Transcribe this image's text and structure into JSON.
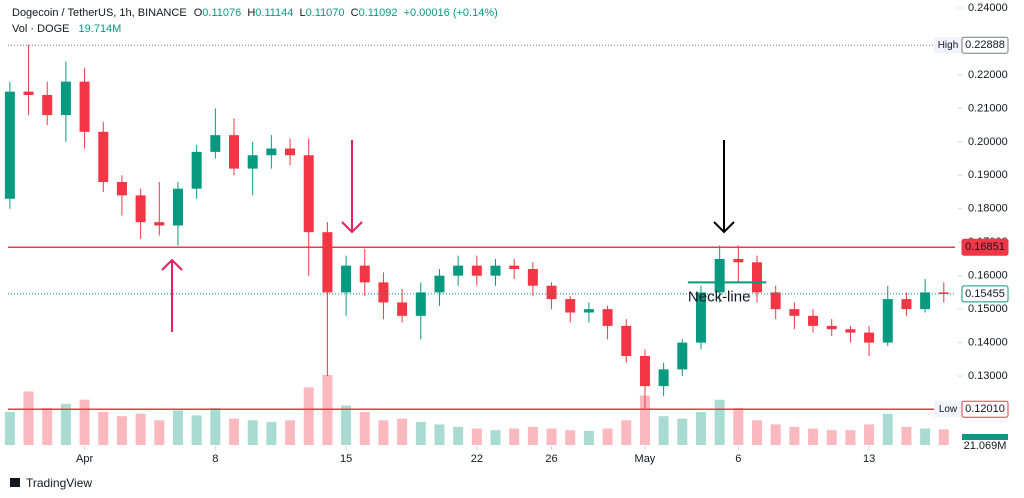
{
  "header": {
    "symbol": "Dogecoin / TetherUS, 1h, BINANCE",
    "ohlc": [
      {
        "key": "O",
        "value": "0.11076"
      },
      {
        "key": "H",
        "value": "0.11144"
      },
      {
        "key": "L",
        "value": "0.11070"
      },
      {
        "key": "C",
        "value": "0.11092"
      }
    ],
    "change": "+0.00016 (+0.14%)",
    "volume_label": "Vol · DOGE",
    "volume_value": "19.714M"
  },
  "chart_data": {
    "type": "candlestick",
    "x": [
      -4,
      -3,
      -2,
      -1,
      0,
      1,
      2,
      3,
      4,
      5,
      6,
      7,
      8,
      9,
      10,
      11,
      12,
      13,
      14,
      15,
      16,
      17,
      18,
      19,
      20,
      21,
      22,
      23,
      24,
      25,
      26,
      27,
      28,
      29,
      30,
      31,
      32,
      33,
      34,
      35,
      36,
      37,
      38,
      39,
      40,
      41,
      42,
      43,
      44,
      45,
      46
    ],
    "open": [
      0.183,
      0.215,
      0.214,
      0.208,
      0.218,
      0.203,
      0.188,
      0.184,
      0.176,
      0.175,
      0.186,
      0.197,
      0.202,
      0.192,
      0.196,
      0.198,
      0.196,
      0.173,
      0.155,
      0.163,
      0.158,
      0.152,
      0.148,
      0.155,
      0.16,
      0.163,
      0.16,
      0.163,
      0.162,
      0.157,
      0.153,
      0.149,
      0.15,
      0.145,
      0.136,
      0.127,
      0.132,
      0.14,
      0.155,
      0.165,
      0.164,
      0.155,
      0.15,
      0.148,
      0.145,
      0.144,
      0.143,
      0.14,
      0.153,
      0.15,
      0.155
    ],
    "high": [
      0.218,
      0.229,
      0.218,
      0.224,
      0.222,
      0.206,
      0.19,
      0.186,
      0.188,
      0.188,
      0.199,
      0.21,
      0.207,
      0.2,
      0.202,
      0.201,
      0.201,
      0.176,
      0.166,
      0.168,
      0.161,
      0.156,
      0.158,
      0.162,
      0.166,
      0.166,
      0.165,
      0.165,
      0.164,
      0.158,
      0.154,
      0.152,
      0.151,
      0.147,
      0.138,
      0.134,
      0.141,
      0.157,
      0.169,
      0.169,
      0.166,
      0.157,
      0.152,
      0.15,
      0.147,
      0.145,
      0.145,
      0.157,
      0.155,
      0.159,
      0.158
    ],
    "low": [
      0.18,
      0.208,
      0.205,
      0.2,
      0.198,
      0.185,
      0.178,
      0.171,
      0.172,
      0.169,
      0.183,
      0.195,
      0.19,
      0.184,
      0.192,
      0.193,
      0.16,
      0.13,
      0.148,
      0.154,
      0.147,
      0.146,
      0.141,
      0.151,
      0.157,
      0.157,
      0.157,
      0.159,
      0.154,
      0.15,
      0.146,
      0.146,
      0.141,
      0.134,
      0.12,
      0.124,
      0.13,
      0.138,
      0.152,
      0.158,
      0.152,
      0.147,
      0.144,
      0.143,
      0.142,
      0.14,
      0.136,
      0.139,
      0.148,
      0.149,
      0.152
    ],
    "close": [
      0.215,
      0.214,
      0.208,
      0.218,
      0.203,
      0.188,
      0.184,
      0.176,
      0.175,
      0.186,
      0.197,
      0.202,
      0.192,
      0.196,
      0.198,
      0.196,
      0.173,
      0.155,
      0.163,
      0.158,
      0.152,
      0.148,
      0.155,
      0.16,
      0.163,
      0.16,
      0.163,
      0.162,
      0.157,
      0.153,
      0.149,
      0.15,
      0.145,
      0.136,
      0.127,
      0.132,
      0.14,
      0.155,
      0.165,
      0.164,
      0.155,
      0.15,
      0.148,
      0.145,
      0.144,
      0.143,
      0.14,
      0.153,
      0.15,
      0.155,
      0.15455
    ],
    "volume": [
      40,
      65,
      45,
      50,
      55,
      40,
      35,
      38,
      30,
      42,
      36,
      45,
      32,
      30,
      28,
      30,
      70,
      85,
      48,
      40,
      30,
      32,
      28,
      25,
      22,
      20,
      18,
      20,
      22,
      20,
      18,
      17,
      20,
      30,
      60,
      35,
      32,
      40,
      55,
      45,
      30,
      25,
      22,
      20,
      18,
      18,
      25,
      38,
      22,
      20,
      19
    ],
    "up_color": "#089981",
    "down_color": "#f23645",
    "xlim": [
      -4.1,
      46.6
    ],
    "ylim": [
      0.1094,
      0.24
    ],
    "xticks": [
      {
        "value": 0,
        "label": "Apr"
      },
      {
        "value": 7,
        "label": "8"
      },
      {
        "value": 14,
        "label": "15"
      },
      {
        "value": 21,
        "label": "22"
      },
      {
        "value": 25,
        "label": "26"
      },
      {
        "value": 30,
        "label": "May"
      },
      {
        "value": 35,
        "label": "6"
      },
      {
        "value": 42,
        "label": "13"
      }
    ],
    "yticks": [
      {
        "value": 0.13,
        "label": "0.13000"
      },
      {
        "value": 0.14,
        "label": "0.14000"
      },
      {
        "value": 0.15,
        "label": "0.15000"
      },
      {
        "value": 0.16,
        "label": "0.16000"
      },
      {
        "value": 0.17,
        "label": "0.17000"
      },
      {
        "value": 0.18,
        "label": "0.18000"
      },
      {
        "value": 0.19,
        "label": "0.19000"
      },
      {
        "value": 0.2,
        "label": "0.20000"
      },
      {
        "value": 0.21,
        "label": "0.21000"
      },
      {
        "value": 0.22,
        "label": "0.22000"
      },
      {
        "value": 0.23,
        "label": "0.23000"
      },
      {
        "value": 0.24,
        "label": "0.24000"
      }
    ],
    "price_tags": [
      {
        "name": "High",
        "value": 0.22888,
        "label": "0.22888",
        "color": "#787b86",
        "line": "dotted"
      },
      {
        "value": 0.16851,
        "label": "0.16851",
        "color": "#f23645",
        "line": "solid"
      },
      {
        "value": 0.15455,
        "label": "0.15455",
        "color": "#089981",
        "line": "dotted"
      },
      {
        "name": "Low",
        "value": 0.1201,
        "label": "0.12010",
        "color": "#f23645",
        "line": "solid"
      }
    ],
    "volume_tag": "21.069M",
    "neckline": {
      "text": "Neck-line",
      "value": 0.158,
      "x": [
        32.3,
        36.5
      ]
    }
  },
  "footer": {
    "brand": "TradingView"
  }
}
